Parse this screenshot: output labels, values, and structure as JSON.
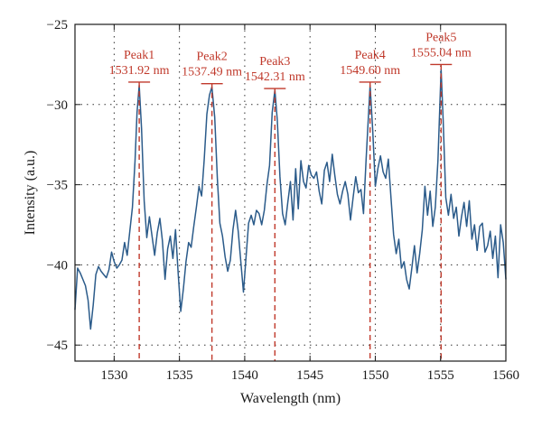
{
  "chart_data": {
    "type": "line",
    "title": "",
    "xlabel": "Wavelength (nm)",
    "ylabel": "Intensity (a.u.)",
    "xlim": [
      1527,
      1560
    ],
    "ylim": [
      -46,
      -25
    ],
    "xticks": [
      1530,
      1535,
      1540,
      1545,
      1550,
      1555,
      1560
    ],
    "yticks": [
      -25,
      -30,
      -35,
      -40,
      -45
    ],
    "grid": true,
    "legend": "none",
    "colors": {
      "line": "#2b5b8a",
      "peak": "#c0392b",
      "grid": "#333333"
    },
    "series": [
      {
        "x": [
          1527.0,
          1527.2,
          1527.4,
          1527.6,
          1527.8,
          1528.0,
          1528.2,
          1528.4,
          1528.6,
          1528.8,
          1529.0,
          1529.2,
          1529.4,
          1529.6,
          1529.8,
          1530.0,
          1530.2,
          1530.4,
          1530.6,
          1530.8,
          1531.0,
          1531.2,
          1531.4,
          1531.6,
          1531.75,
          1531.92,
          1532.1,
          1532.3,
          1532.5,
          1532.7,
          1532.9,
          1533.1,
          1533.3,
          1533.5,
          1533.7,
          1533.9,
          1534.1,
          1534.3,
          1534.5,
          1534.7,
          1534.9,
          1535.1,
          1535.3,
          1535.5,
          1535.7,
          1535.9,
          1536.1,
          1536.3,
          1536.5,
          1536.7,
          1536.9,
          1537.1,
          1537.3,
          1537.49,
          1537.7,
          1537.9,
          1538.1,
          1538.3,
          1538.5,
          1538.7,
          1538.9,
          1539.1,
          1539.3,
          1539.5,
          1539.7,
          1539.9,
          1540.1,
          1540.3,
          1540.5,
          1540.7,
          1540.9,
          1541.1,
          1541.3,
          1541.5,
          1541.7,
          1541.9,
          1542.1,
          1542.31,
          1542.5,
          1542.7,
          1542.9,
          1543.1,
          1543.3,
          1543.5,
          1543.7,
          1543.9,
          1544.1,
          1544.3,
          1544.5,
          1544.7,
          1544.9,
          1545.1,
          1545.3,
          1545.5,
          1545.7,
          1545.9,
          1546.1,
          1546.3,
          1546.5,
          1546.7,
          1546.9,
          1547.1,
          1547.3,
          1547.5,
          1547.7,
          1547.9,
          1548.1,
          1548.3,
          1548.5,
          1548.7,
          1548.9,
          1549.1,
          1549.3,
          1549.6,
          1549.8,
          1550.0,
          1550.2,
          1550.4,
          1550.6,
          1550.8,
          1551.0,
          1551.2,
          1551.4,
          1551.6,
          1551.8,
          1552.0,
          1552.2,
          1552.4,
          1552.6,
          1552.8,
          1553.0,
          1553.2,
          1553.4,
          1553.6,
          1553.8,
          1554.0,
          1554.2,
          1554.4,
          1554.6,
          1554.8,
          1555.04,
          1555.2,
          1555.4,
          1555.6,
          1555.8,
          1556.0,
          1556.2,
          1556.4,
          1556.6,
          1556.8,
          1557.0,
          1557.2,
          1557.4,
          1557.6,
          1557.8,
          1558.0,
          1558.2,
          1558.4,
          1558.6,
          1558.8,
          1559.0,
          1559.2,
          1559.4,
          1559.6,
          1559.8,
          1560.0
        ],
        "values": [
          -42.8,
          -40.2,
          -40.5,
          -40.9,
          -41.3,
          -42.2,
          -44.0,
          -42.5,
          -40.6,
          -40.1,
          -40.4,
          -40.6,
          -40.8,
          -40.3,
          -39.2,
          -39.8,
          -40.2,
          -40.0,
          -39.7,
          -38.6,
          -39.4,
          -37.9,
          -36.4,
          -33.5,
          -30.5,
          -28.8,
          -31.5,
          -36.0,
          -38.3,
          -37.0,
          -38.2,
          -39.4,
          -38.0,
          -37.1,
          -38.5,
          -40.9,
          -39.0,
          -38.2,
          -39.6,
          -37.8,
          -40.5,
          -42.9,
          -41.5,
          -39.8,
          -38.6,
          -38.9,
          -37.6,
          -36.4,
          -35.1,
          -35.7,
          -33.4,
          -30.6,
          -29.4,
          -28.9,
          -30.8,
          -34.6,
          -37.4,
          -38.2,
          -39.5,
          -40.4,
          -39.7,
          -37.8,
          -36.6,
          -37.9,
          -39.8,
          -41.7,
          -39.5,
          -37.4,
          -36.9,
          -37.5,
          -36.6,
          -36.8,
          -37.5,
          -36.6,
          -35.0,
          -33.8,
          -30.5,
          -29.1,
          -31.0,
          -34.5,
          -36.8,
          -37.5,
          -36.1,
          -34.8,
          -37.2,
          -34.0,
          -36.5,
          -33.5,
          -34.8,
          -35.2,
          -33.8,
          -34.4,
          -34.6,
          -34.2,
          -35.4,
          -36.2,
          -34.1,
          -33.6,
          -34.8,
          -33.1,
          -34.4,
          -35.6,
          -36.2,
          -35.4,
          -34.8,
          -35.6,
          -37.2,
          -35.8,
          -34.5,
          -35.5,
          -35.3,
          -36.8,
          -33.4,
          -28.8,
          -31.6,
          -35.1,
          -34.0,
          -33.2,
          -34.2,
          -34.6,
          -33.4,
          -35.8,
          -38.1,
          -39.3,
          -38.4,
          -40.2,
          -39.8,
          -40.9,
          -41.5,
          -40.2,
          -38.8,
          -40.5,
          -39.3,
          -37.8,
          -35.1,
          -36.9,
          -35.4,
          -37.6,
          -36.4,
          -33.5,
          -27.8,
          -31.0,
          -35.8,
          -36.9,
          -35.6,
          -37.1,
          -36.4,
          -38.2,
          -37.0,
          -36.1,
          -37.6,
          -36.0,
          -38.4,
          -37.5,
          -39.1,
          -37.6,
          -37.4,
          -39.2,
          -38.8,
          -37.9,
          -39.6,
          -38.2,
          -40.8,
          -37.5,
          -38.6,
          -40.9
        ]
      }
    ],
    "peaks": [
      {
        "name": "Peak1",
        "value_label": "1531.92 nm",
        "x": 1531.92,
        "y": -28.6
      },
      {
        "name": "Peak2",
        "value_label": "1537.49 nm",
        "x": 1537.49,
        "y": -28.7
      },
      {
        "name": "Peak3",
        "value_label": "1542.31 nm",
        "x": 1542.31,
        "y": -29.0
      },
      {
        "name": "Peak4",
        "value_label": "1549.60 nm",
        "x": 1549.6,
        "y": -28.6
      },
      {
        "name": "Peak5",
        "value_label": "1555.04 nm",
        "x": 1555.04,
        "y": -27.5
      }
    ]
  }
}
